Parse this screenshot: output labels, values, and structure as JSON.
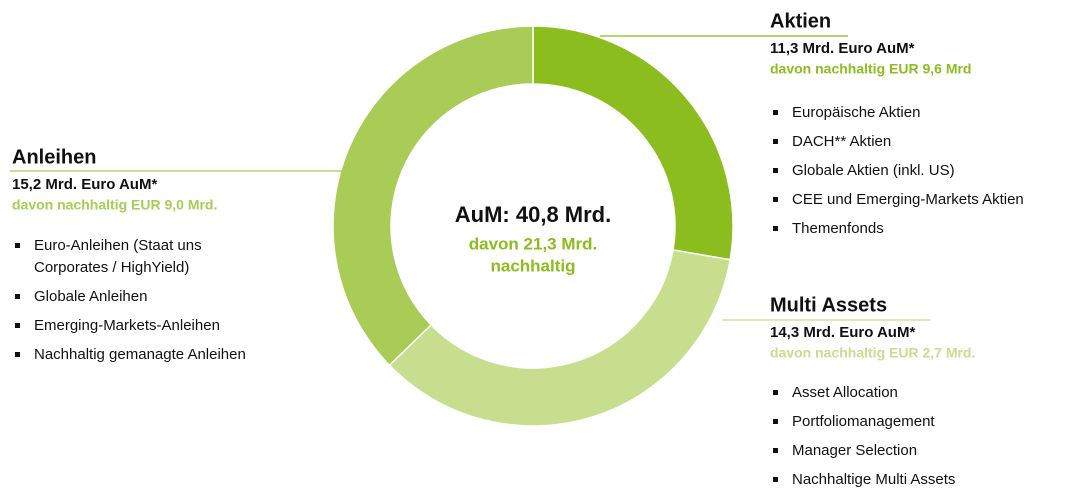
{
  "chart_data": {
    "type": "pie",
    "donut": true,
    "center_title": "AuM: 40,8 Mrd.",
    "center_subtitle": [
      "davon 21,3 Mrd.",
      "nachhaltig"
    ],
    "categories": [
      "Aktien",
      "Multi Assets",
      "Anleihen"
    ],
    "values": [
      11.3,
      14.3,
      15.2
    ],
    "value_labels": [
      "11,3 Mrd. Euro AuM*",
      "14,3 Mrd. Euro AuM*",
      "15,2 Mrd. Euro AuM*"
    ],
    "sustainable_labels": [
      "davon nachhaltig EUR 9,6 Mrd",
      "davon nachhaltig EUR 2,7 Mrd.",
      "davon nachhaltig EUR 9,0 Mrd."
    ],
    "colors": [
      "#8cbd1e",
      "#c6de8e",
      "#a8cc55"
    ],
    "items": [
      [
        [
          "Europäische Aktien"
        ],
        [
          "DACH** Aktien"
        ],
        [
          "Globale Aktien (inkl. US)"
        ],
        [
          "CEE und Emerging-Markets Aktien"
        ],
        [
          "Themenfonds"
        ]
      ],
      [
        [
          "Asset Allocation"
        ],
        [
          "Portfoliomanagement"
        ],
        [
          "Manager Selection"
        ],
        [
          "Nachhaltige Multi Assets"
        ]
      ],
      [
        [
          "Euro-Anleihen (Staat uns",
          "Corporates / HighYield)"
        ],
        [
          "Globale Anleihen"
        ],
        [
          "Emerging-Markets-Anleihen"
        ],
        [
          "Nachhaltig gemanagte Anleihen"
        ]
      ]
    ]
  }
}
